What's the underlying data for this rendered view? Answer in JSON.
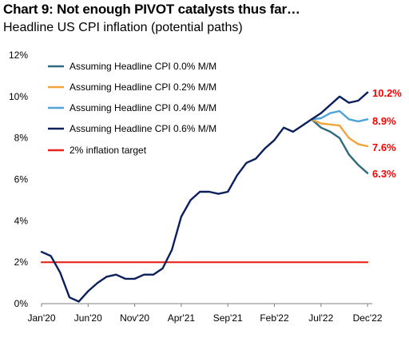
{
  "header": {
    "title": "Chart 9: Not enough PIVOT catalysts thus far…",
    "subtitle": "Headline US CPI inflation (potential paths)"
  },
  "chart_data": {
    "type": "line",
    "title": "Chart 9: Not enough PIVOT catalysts thus far…",
    "subtitle": "Headline US CPI inflation (potential paths)",
    "xlabel": "",
    "ylabel": "",
    "ylim": [
      0,
      12
    ],
    "y_ticks": [
      0,
      2,
      4,
      6,
      8,
      10,
      12
    ],
    "y_tick_labels": [
      "0%",
      "2%",
      "4%",
      "6%",
      "8%",
      "10%",
      "12%"
    ],
    "x_tick_labels": [
      "Jan'20",
      "Jun'20",
      "Nov'20",
      "Apr'21",
      "Sep'21",
      "Feb'22",
      "Jul'22",
      "Dec'22"
    ],
    "x_tick_index": [
      0,
      5,
      10,
      15,
      20,
      25,
      30,
      35
    ],
    "grid": false,
    "legend": "top-left",
    "history_color": "#0b1f5c",
    "series": [
      {
        "name": "Assuming Headline CPI 0.0% M/M",
        "color": "#2e6b7e",
        "start_index": 29,
        "values": [
          8.9,
          8.5,
          8.3,
          8.0,
          7.2,
          6.7,
          6.3
        ],
        "end_label": "6.3%"
      },
      {
        "name": "Assuming Headline CPI 0.2% M/M",
        "color": "#f2a33a",
        "start_index": 29,
        "values": [
          8.9,
          8.7,
          8.65,
          8.6,
          8.0,
          7.7,
          7.6
        ],
        "end_label": "7.6%"
      },
      {
        "name": "Assuming Headline CPI 0.4% M/M",
        "color": "#4fa3d9",
        "start_index": 29,
        "values": [
          8.9,
          8.95,
          9.2,
          9.3,
          8.9,
          8.8,
          8.9
        ],
        "end_label": "8.9%"
      },
      {
        "name": "Assuming Headline CPI 0.6% M/M",
        "color": "#0b1f5c",
        "start_index": 29,
        "values": [
          8.9,
          9.2,
          9.6,
          10.0,
          9.7,
          9.8,
          10.2
        ],
        "end_label": "10.2%"
      },
      {
        "name": "2% inflation target",
        "color": "#e8251e",
        "start_index": 0,
        "values": [
          2,
          2,
          2,
          2,
          2,
          2,
          2,
          2,
          2,
          2,
          2,
          2,
          2,
          2,
          2,
          2,
          2,
          2,
          2,
          2,
          2,
          2,
          2,
          2,
          2,
          2,
          2,
          2,
          2,
          2,
          2,
          2,
          2,
          2,
          2,
          2
        ],
        "end_label": ""
      }
    ],
    "history": {
      "start_index": 0,
      "values": [
        2.5,
        2.3,
        1.5,
        0.3,
        0.1,
        0.6,
        1.0,
        1.3,
        1.4,
        1.2,
        1.2,
        1.4,
        1.4,
        1.7,
        2.6,
        4.2,
        5.0,
        5.4,
        5.4,
        5.3,
        5.4,
        6.2,
        6.8,
        7.0,
        7.5,
        7.9,
        8.5,
        8.3,
        8.6,
        8.9
      ]
    }
  }
}
